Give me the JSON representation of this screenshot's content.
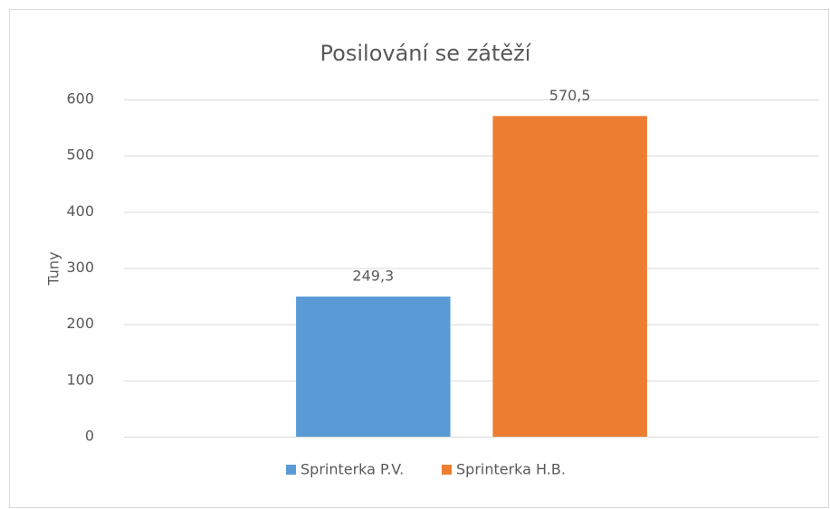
{
  "chart_data": {
    "type": "bar",
    "title": "Posilování se zátěží",
    "y_label": "Tuny",
    "categories": [
      null
    ],
    "series": [
      {
        "name": "Sprinterka P.V.",
        "color": "#5b9bd5",
        "values": [
          249.3
        ],
        "value_labels": [
          "249,3"
        ]
      },
      {
        "name": "Sprinterka H.B.",
        "color": "#ed7d31",
        "values": [
          570.5
        ],
        "value_labels": [
          "570,5"
        ]
      }
    ],
    "ylim": [
      0,
      600
    ],
    "yticks": [
      0,
      100,
      200,
      300,
      400,
      500,
      600
    ],
    "grid": true,
    "legend": "bottom"
  }
}
